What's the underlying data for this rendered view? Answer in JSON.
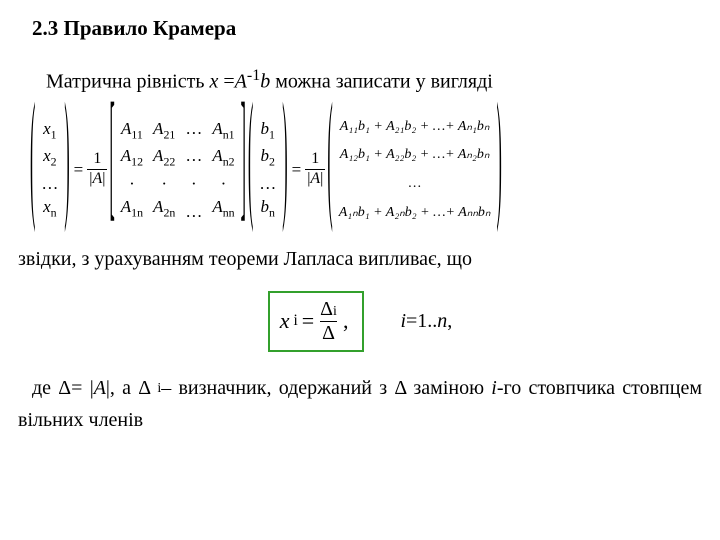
{
  "heading": "2.3 Правило Крамера",
  "intro_prefix": "Матрична рівність ",
  "intro_expr_x": "x",
  "intro_expr_eq": " =",
  "intro_expr_A": "A",
  "intro_expr_sup": "-1",
  "intro_expr_b": "b",
  "intro_suffix": " можна записати у вигляді",
  "xvec": {
    "r1": "x",
    "s1": "1",
    "r2": "x",
    "s2": "2",
    "r3": "…",
    "r4": "x",
    "s4": "n"
  },
  "frac1": {
    "num": "1",
    "denA": "A"
  },
  "mat": {
    "c1": {
      "r1a": "A",
      "r1s": "11",
      "r2a": "A",
      "r2s": "12",
      "r3": "·",
      "r4a": "A",
      "r4s": "1n"
    },
    "c2": {
      "r1a": "A",
      "r1s": "21",
      "r2a": "A",
      "r2s": "22",
      "r3": "·",
      "r4a": "A",
      "r4s": "2n"
    },
    "c3": {
      "r1": "…",
      "r2": "…",
      "r3": "·",
      "r4": "…"
    },
    "c4": {
      "r1a": "A",
      "r1s": "n1",
      "r2a": "A",
      "r2s": "n2",
      "r3": "·",
      "r4a": "A",
      "r4s": "nn"
    }
  },
  "bvec": {
    "r1": "b",
    "s1": "1",
    "r2": "b",
    "s2": "2",
    "r3": "…",
    "r4": "b",
    "s4": "n"
  },
  "frac2": {
    "num": "1",
    "denA": "A"
  },
  "result": {
    "r1": "A₁₁b₁ + A₂₁b₂ + …+ Aₙ₁bₙ",
    "r2": "A₁₂b₁ + A₂₂b₂ + …+ Aₙ₂bₙ",
    "r3": "…",
    "r4": "A₁ₙb₁ + A₂ₙb₂ + …+ Aₙₙbₙ"
  },
  "mid": "звідки, з урахуванням теореми Лапласа випливає, що",
  "box": {
    "xi_x": "x",
    "xi_i": "i",
    "eq": "=",
    "num_D": "Δ",
    "num_i": "i",
    "den_D": "Δ",
    "comma": ","
  },
  "range": {
    "i": "i",
    "txt": "=1..",
    "n": "n",
    "comma": ","
  },
  "tail": {
    "p1": "де Δ= |",
    "A": "A",
    "p2": "|, а Δ ",
    "isub": "i",
    "p3": "– визначник, одержаний з Δ заміною ",
    "ii": "i",
    "p4": "-го стовпчика стовпцем вільних членів"
  },
  "style": {
    "box_border": "#33a02c",
    "text_color": "#000000",
    "bg": "#ffffff",
    "heading_fontsize": 21,
    "body_fontsize": 20,
    "eq_fontsize": 17,
    "box_fontsize": 22
  }
}
